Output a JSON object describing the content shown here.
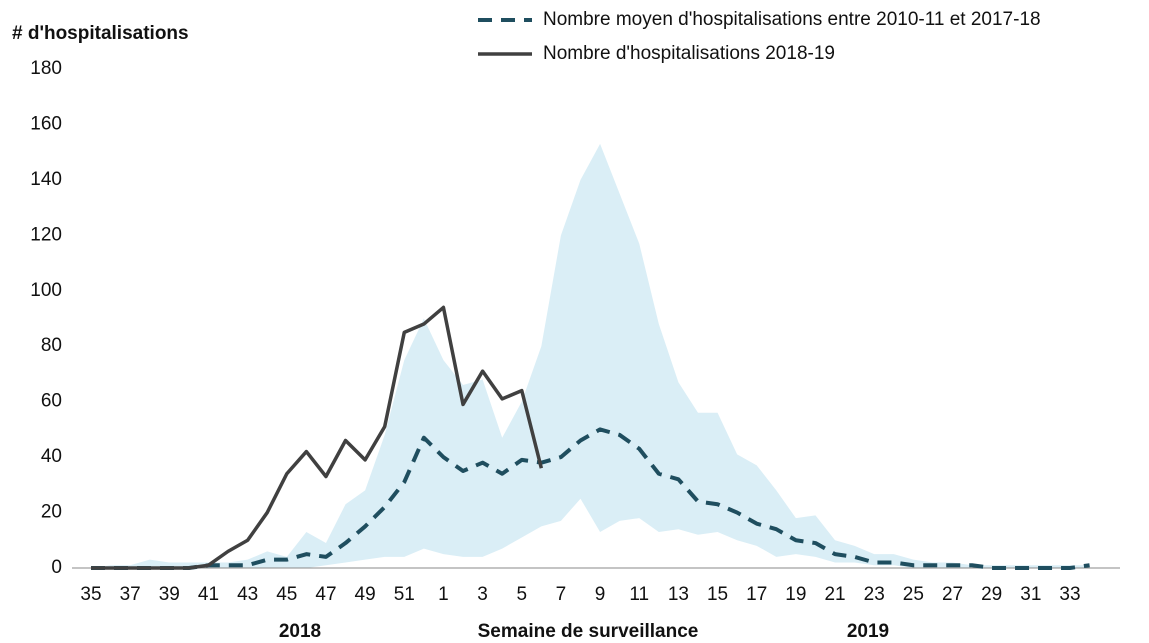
{
  "chart_data": {
    "type": "line",
    "y_label": "# d'hospitalisations",
    "x_label": "Semaine de surveillance",
    "annotations": [
      "2018",
      "2019"
    ],
    "categories": [
      35,
      null,
      37,
      null,
      39,
      null,
      41,
      null,
      43,
      null,
      45,
      null,
      47,
      null,
      49,
      null,
      51,
      null,
      1,
      null,
      3,
      null,
      5,
      null,
      7,
      null,
      9,
      null,
      11,
      null,
      13,
      null,
      15,
      null,
      17,
      null,
      19,
      null,
      21,
      null,
      23,
      null,
      25,
      null,
      27,
      null,
      29,
      null,
      31,
      null,
      33,
      null
    ],
    "ylim": [
      0,
      180
    ],
    "yticks": [
      0,
      20,
      40,
      60,
      80,
      100,
      120,
      140,
      160,
      180
    ],
    "legend": "upper right",
    "band": {
      "color": "#daeef6",
      "lower": [
        0,
        0,
        0,
        0,
        0,
        0,
        0,
        0,
        0,
        0,
        0,
        0,
        1,
        2,
        3,
        4,
        4,
        7,
        5,
        4,
        4,
        7,
        11,
        15,
        17,
        25,
        13,
        17,
        18,
        13,
        14,
        12,
        13,
        10,
        8,
        4,
        5,
        4,
        2,
        2,
        1,
        1,
        0,
        0,
        0,
        0,
        0,
        0,
        0,
        0,
        0,
        0
      ],
      "upper": [
        0,
        1,
        1,
        3,
        2,
        2,
        2,
        2,
        3,
        6,
        4,
        13,
        9,
        23,
        28,
        48,
        75,
        90,
        75,
        66,
        68,
        47,
        60,
        80,
        120,
        140,
        153,
        135,
        117,
        88,
        67,
        56,
        56,
        41,
        37,
        28,
        18,
        19,
        10,
        8,
        5,
        5,
        3,
        2,
        2,
        1,
        1,
        1,
        1,
        1,
        1,
        1
      ]
    },
    "series": [
      {
        "name": "Nombre moyen d'hospitalisations entre 2010-11 et 2017-18",
        "color": "#1f4e5f",
        "dash": true,
        "values": [
          0,
          0,
          0,
          0,
          0,
          0,
          1,
          1,
          1,
          3,
          3,
          5,
          4,
          9,
          15,
          22,
          31,
          47,
          40,
          35,
          38,
          34,
          39,
          38,
          40,
          46,
          50,
          48,
          43,
          34,
          32,
          24,
          23,
          20,
          16,
          14,
          10,
          9,
          5,
          4,
          2,
          2,
          1,
          1,
          1,
          1,
          0,
          0,
          0,
          0,
          0,
          1
        ]
      },
      {
        "name": "Nombre d'hospitalisations 2018-19",
        "color": "#404040",
        "dash": false,
        "values": [
          0,
          0,
          0,
          0,
          0,
          0,
          1,
          6,
          10,
          20,
          34,
          42,
          33,
          46,
          39,
          51,
          85,
          88,
          94,
          59,
          71,
          61,
          64,
          36,
          null,
          null,
          null,
          null,
          null,
          null,
          null,
          null,
          null,
          null,
          null,
          null,
          null,
          null,
          null,
          null,
          null,
          null,
          null,
          null,
          null,
          null,
          null,
          null,
          null,
          null,
          null,
          null
        ]
      }
    ]
  }
}
